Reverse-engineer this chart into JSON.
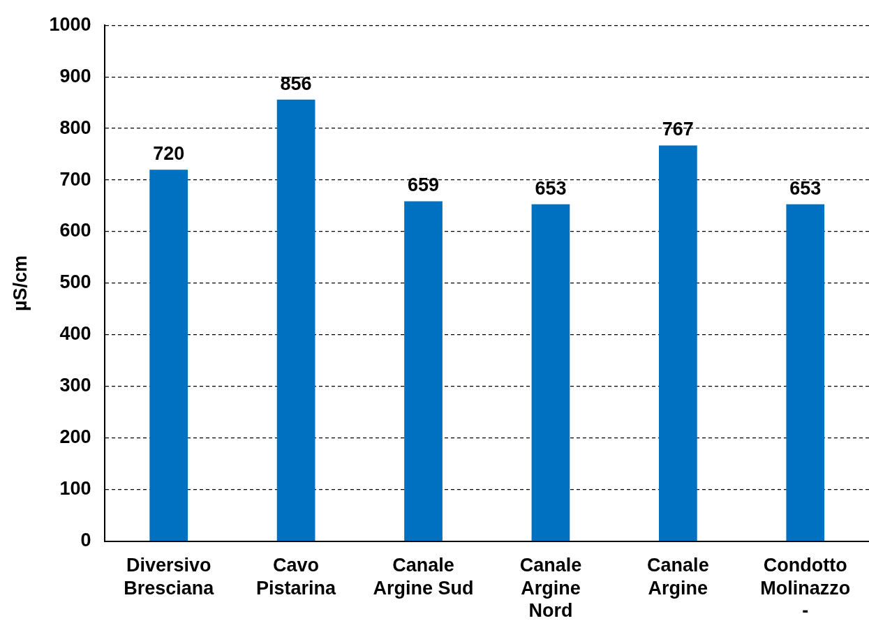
{
  "chart_data": {
    "type": "bar",
    "ylabel": "µS/cm",
    "categories": [
      "Diversivo Bresciana",
      "Cavo Pistarina",
      "Canale Argine Sud",
      "Canale Argine Nord",
      "Canale Argine",
      "Condotto Molinazzo -"
    ],
    "values": [
      720,
      856,
      659,
      653,
      767,
      653
    ],
    "color": "#0070c0",
    "ylim": [
      0,
      1000
    ],
    "yticks": [
      0,
      100,
      200,
      300,
      400,
      500,
      600,
      700,
      800,
      900,
      1000
    ],
    "grid": "y",
    "data_labels": true
  }
}
